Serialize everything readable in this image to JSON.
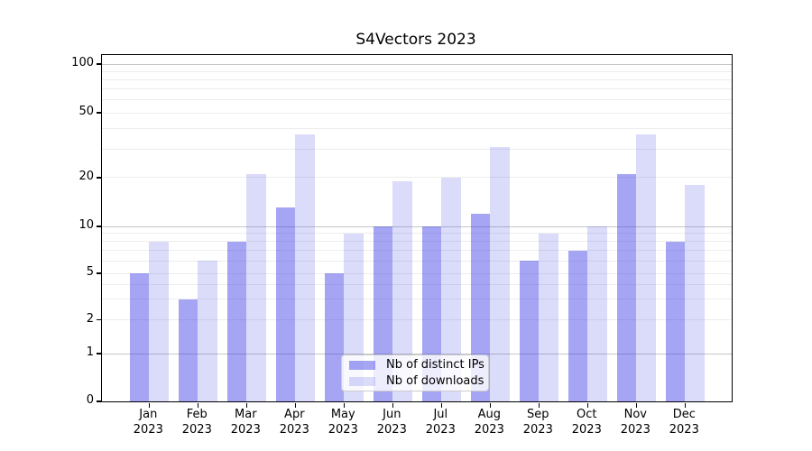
{
  "chart_data": {
    "type": "bar",
    "title": "S4Vectors 2023",
    "year": "2023",
    "months": [
      "Jan",
      "Feb",
      "Mar",
      "Apr",
      "May",
      "Jun",
      "Jul",
      "Aug",
      "Sep",
      "Oct",
      "Nov",
      "Dec"
    ],
    "categories": [
      "Jan 2023",
      "Feb 2023",
      "Mar 2023",
      "Apr 2023",
      "May 2023",
      "Jun 2023",
      "Jul 2023",
      "Aug 2023",
      "Sep 2023",
      "Oct 2023",
      "Nov 2023",
      "Dec 2023"
    ],
    "series": [
      {
        "name": "Nb of distinct IPs",
        "color": "rgba(55,55,230,0.45)",
        "values": [
          5,
          3,
          8,
          13,
          5,
          10,
          10,
          12,
          6,
          7,
          21,
          8
        ]
      },
      {
        "name": "Nb of downloads",
        "color": "rgba(55,55,230,0.18)",
        "values": [
          8,
          6,
          21,
          37,
          9,
          19,
          20,
          31,
          9,
          10,
          37,
          18
        ]
      }
    ],
    "y_ticks": [
      100,
      50,
      20,
      10,
      5,
      2,
      1,
      0
    ],
    "yscale": "log-like",
    "ylim": [
      0,
      110
    ],
    "grid": "horizontal log gridlines, majors at 1/10/100",
    "legend_position": "lower center inside plot",
    "colors": {
      "major_gridline": "#c6c6c6",
      "minor_gridline": "#ededed",
      "spine": "#000000",
      "legend_border": "#cccccc"
    }
  }
}
